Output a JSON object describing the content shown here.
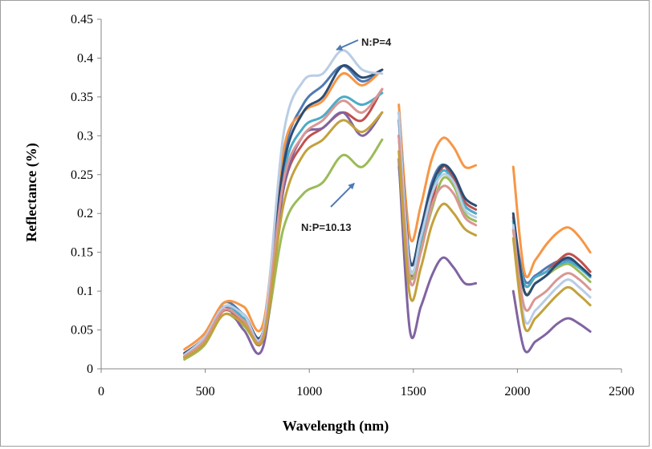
{
  "chart_data": {
    "type": "line",
    "title": "",
    "xlabel": "Wavelength (nm)",
    "ylabel": "Reflectance (%)",
    "xlim": [
      0,
      2500
    ],
    "ylim": [
      0,
      0.45
    ],
    "xticks": [
      0,
      500,
      1000,
      1500,
      2000,
      2500
    ],
    "yticks": [
      0,
      0.05,
      0.1,
      0.15,
      0.2,
      0.25,
      0.3,
      0.35,
      0.4,
      0.45
    ],
    "grid": false,
    "legend": "none",
    "annotations": [
      {
        "text": "N:P=4",
        "points_to": [
          1100,
          0.415
        ]
      },
      {
        "text": "N:P=10.13",
        "points_to": [
          1100,
          0.28
        ]
      }
    ],
    "segments": [
      {
        "x0": 400,
        "x1": 1350,
        "n": 11
      },
      {
        "x0": 1430,
        "x1": 1800,
        "n": 8
      },
      {
        "x0": 1980,
        "x1": 2350,
        "n": 8
      }
    ],
    "series": [
      {
        "color": "#4f7ab3",
        "values": [
          0.02,
          0.04,
          0.085,
          0.07,
          0.05,
          0.27,
          0.34,
          0.365,
          0.39,
          0.37,
          0.385,
          0.32,
          0.14,
          0.18,
          0.24,
          0.263,
          0.24,
          0.21,
          0.2,
          0.19,
          0.115,
          0.12,
          0.13,
          0.138,
          0.14,
          0.132,
          0.12,
          0.105
        ]
      },
      {
        "color": "#c0504d",
        "values": [
          0.015,
          0.035,
          0.075,
          0.06,
          0.04,
          0.23,
          0.29,
          0.31,
          0.33,
          0.32,
          0.36,
          0.3,
          0.125,
          0.16,
          0.215,
          0.26,
          0.245,
          0.215,
          0.205,
          0.195,
          0.11,
          0.118,
          0.125,
          0.138,
          0.148,
          0.14,
          0.125,
          0.11
        ]
      },
      {
        "color": "#9bbb59",
        "values": [
          0.012,
          0.03,
          0.07,
          0.055,
          0.04,
          0.18,
          0.225,
          0.24,
          0.275,
          0.26,
          0.295,
          0.26,
          0.12,
          0.155,
          0.205,
          0.245,
          0.235,
          0.2,
          0.19,
          0.18,
          0.1,
          0.11,
          0.12,
          0.13,
          0.135,
          0.125,
          0.112,
          0.1
        ]
      },
      {
        "color": "#8064a2",
        "values": [
          0.015,
          0.035,
          0.08,
          0.05,
          0.03,
          0.23,
          0.3,
          0.31,
          0.33,
          0.3,
          0.33,
          0.27,
          0.05,
          0.08,
          0.12,
          0.143,
          0.13,
          0.11,
          0.11,
          0.1,
          0.025,
          0.035,
          0.045,
          0.058,
          0.065,
          0.058,
          0.048,
          0.04
        ]
      },
      {
        "color": "#4bacc6",
        "values": [
          0.018,
          0.038,
          0.08,
          0.065,
          0.045,
          0.25,
          0.31,
          0.325,
          0.35,
          0.34,
          0.355,
          0.3,
          0.13,
          0.165,
          0.225,
          0.255,
          0.24,
          0.21,
          0.2,
          0.19,
          0.11,
          0.118,
          0.125,
          0.133,
          0.138,
          0.13,
          0.118,
          0.105
        ]
      },
      {
        "color": "#f79646",
        "values": [
          0.025,
          0.045,
          0.085,
          0.08,
          0.06,
          0.28,
          0.33,
          0.345,
          0.38,
          0.365,
          0.385,
          0.34,
          0.17,
          0.21,
          0.27,
          0.297,
          0.285,
          0.26,
          0.262,
          0.26,
          0.125,
          0.14,
          0.16,
          0.175,
          0.182,
          0.17,
          0.15,
          0.13
        ]
      },
      {
        "color": "#2c4d75",
        "values": [
          0.02,
          0.04,
          0.08,
          0.07,
          0.05,
          0.26,
          0.33,
          0.35,
          0.39,
          0.375,
          0.385,
          0.33,
          0.14,
          0.18,
          0.235,
          0.262,
          0.25,
          0.22,
          0.21,
          0.2,
          0.1,
          0.11,
          0.12,
          0.135,
          0.143,
          0.133,
          0.12,
          0.1
        ]
      },
      {
        "color": "#b9cde5",
        "values": [
          0.018,
          0.04,
          0.08,
          0.07,
          0.05,
          0.3,
          0.37,
          0.38,
          0.41,
          0.385,
          0.38,
          0.33,
          0.13,
          0.17,
          0.225,
          0.25,
          0.24,
          0.205,
          0.195,
          0.185,
          0.065,
          0.075,
          0.09,
          0.105,
          0.115,
          0.105,
          0.092,
          0.08
        ]
      },
      {
        "color": "#d99694",
        "values": [
          0.016,
          0.036,
          0.076,
          0.062,
          0.044,
          0.24,
          0.3,
          0.32,
          0.345,
          0.33,
          0.36,
          0.3,
          0.115,
          0.15,
          0.21,
          0.235,
          0.225,
          0.195,
          0.185,
          0.178,
          0.08,
          0.09,
          0.1,
          0.115,
          0.123,
          0.115,
          0.102,
          0.09
        ]
      },
      {
        "color": "#c3a13c",
        "values": [
          0.014,
          0.032,
          0.07,
          0.058,
          0.04,
          0.21,
          0.275,
          0.295,
          0.32,
          0.305,
          0.33,
          0.28,
          0.095,
          0.13,
          0.185,
          0.212,
          0.2,
          0.18,
          0.172,
          0.168,
          0.055,
          0.065,
          0.08,
          0.095,
          0.105,
          0.095,
          0.082,
          0.07
        ]
      }
    ]
  }
}
